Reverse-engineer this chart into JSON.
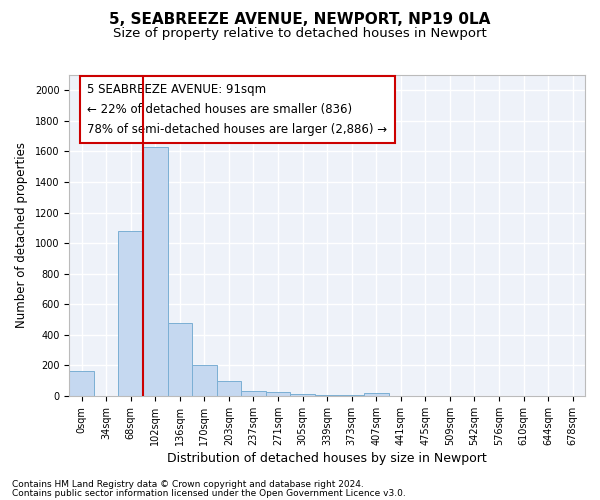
{
  "title_line1": "5, SEABREEZE AVENUE, NEWPORT, NP19 0LA",
  "title_line2": "Size of property relative to detached houses in Newport",
  "xlabel": "Distribution of detached houses by size in Newport",
  "ylabel": "Number of detached properties",
  "categories": [
    "0sqm",
    "34sqm",
    "68sqm",
    "102sqm",
    "136sqm",
    "170sqm",
    "203sqm",
    "237sqm",
    "271sqm",
    "305sqm",
    "339sqm",
    "373sqm",
    "407sqm",
    "441sqm",
    "475sqm",
    "509sqm",
    "542sqm",
    "576sqm",
    "610sqm",
    "644sqm",
    "678sqm"
  ],
  "bar_values": [
    165,
    0,
    1080,
    1630,
    475,
    200,
    100,
    35,
    25,
    15,
    5,
    3,
    20,
    0,
    0,
    0,
    0,
    0,
    0,
    0,
    0
  ],
  "bar_color": "#c5d8f0",
  "bar_edge_color": "#7bafd4",
  "vline_color": "#cc0000",
  "vline_pos": 2.5,
  "ylim": [
    0,
    2100
  ],
  "yticks": [
    0,
    200,
    400,
    600,
    800,
    1000,
    1200,
    1400,
    1600,
    1800,
    2000
  ],
  "annotation_line1": "5 SEABREEZE AVENUE: 91sqm",
  "annotation_line2": "← 22% of detached houses are smaller (836)",
  "annotation_line3": "78% of semi-detached houses are larger (2,886) →",
  "footnote_line1": "Contains HM Land Registry data © Crown copyright and database right 2024.",
  "footnote_line2": "Contains public sector information licensed under the Open Government Licence v3.0.",
  "bg_color": "#eef2f9",
  "grid_color": "#ffffff",
  "title_fontsize": 11,
  "subtitle_fontsize": 9.5,
  "tick_fontsize": 7,
  "xlabel_fontsize": 9,
  "ylabel_fontsize": 8.5,
  "annotation_fontsize": 8.5,
  "footnote_fontsize": 6.5
}
